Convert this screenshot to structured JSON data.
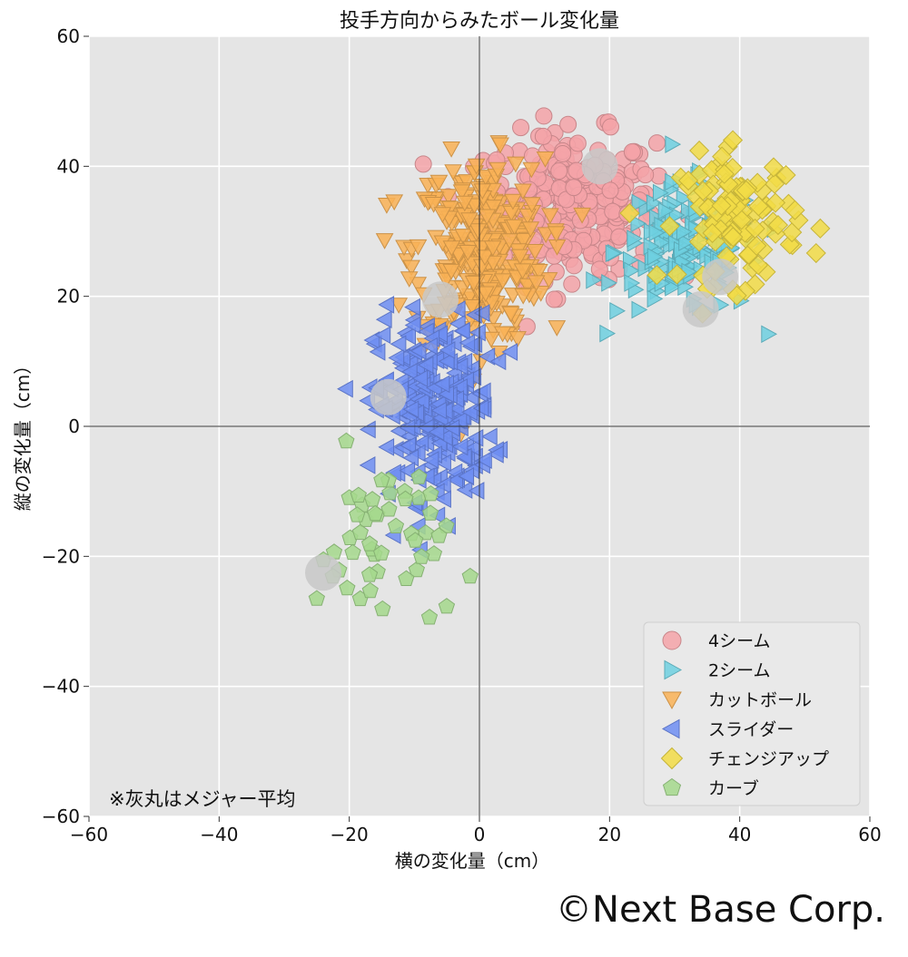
{
  "chart_data": {
    "type": "scatter",
    "title": "投手方向からみたボール変化量",
    "xlabel": "横の変化量（cm）",
    "ylabel": "縦の変化量（cm）",
    "xlim": [
      -60,
      60
    ],
    "ylim": [
      -60,
      60
    ],
    "xticks": [
      -60,
      -40,
      -20,
      0,
      20,
      40,
      60
    ],
    "yticks": [
      -60,
      -40,
      -20,
      0,
      20,
      40,
      60
    ],
    "xtick_labels": [
      "−60",
      "−40",
      "−20",
      "0",
      "20",
      "40",
      "60"
    ],
    "ytick_labels": [
      "−60",
      "−40",
      "−20",
      "0",
      "20",
      "40",
      "60"
    ],
    "grid": true,
    "legend_position": "bottom-right",
    "note": "※灰丸はメジャー平均",
    "series": [
      {
        "name": "4シーム",
        "marker": "circle",
        "color": "#f4a3a8",
        "center": [
          14,
          34
        ],
        "spread": [
          6.5,
          5.5
        ],
        "count": 300
      },
      {
        "name": "2シーム",
        "marker": "triangle-right",
        "color": "#6fd0e0",
        "center": [
          32,
          27
        ],
        "spread": [
          5.5,
          5
        ],
        "count": 160
      },
      {
        "name": "カットボール",
        "marker": "triangle-down",
        "color": "#f9b256",
        "center": [
          0,
          27
        ],
        "spread": [
          5,
          7
        ],
        "count": 320
      },
      {
        "name": "スライダー",
        "marker": "triangle-left",
        "color": "#6f8ef2",
        "center": [
          -7,
          3
        ],
        "spread": [
          4.5,
          7
        ],
        "count": 280
      },
      {
        "name": "チェンジアップ",
        "marker": "diamond",
        "color": "#f2dc46",
        "center": [
          40,
          32
        ],
        "spread": [
          4.5,
          5
        ],
        "count": 110
      },
      {
        "name": "カーブ",
        "marker": "pentagon",
        "color": "#a4d88c",
        "center": [
          -15,
          -18
        ],
        "spread": [
          5,
          7
        ],
        "count": 50
      }
    ],
    "mlb_averages": {
      "color": "#c8c8c8",
      "points": [
        [
          -24,
          -22.5
        ],
        [
          -14,
          4.5
        ],
        [
          -6,
          19.5
        ],
        [
          18.5,
          40
        ],
        [
          34,
          18
        ],
        [
          37,
          23
        ]
      ]
    }
  },
  "footer": {
    "copyright": "©Next Base Corp."
  }
}
